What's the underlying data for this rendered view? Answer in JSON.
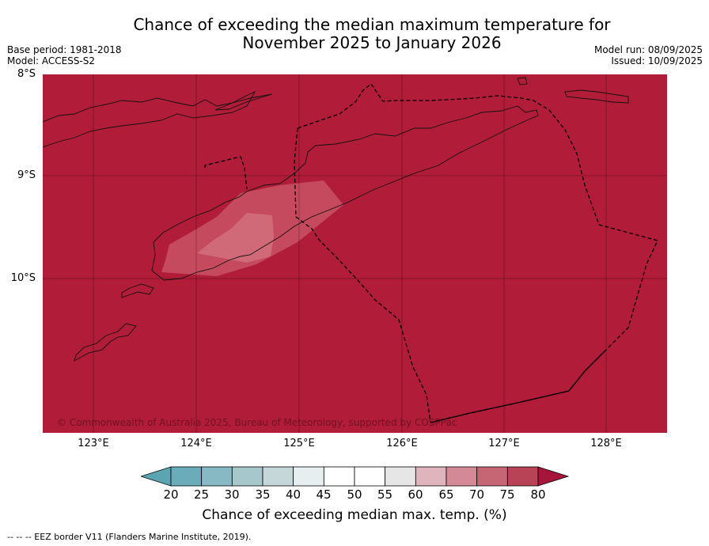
{
  "title": {
    "line1": "Chance of exceeding the median maximum temperature for",
    "line2": "November 2025 to January 2026"
  },
  "meta_left": {
    "base_period": "Base period: 1981-2018",
    "model": "Model: ACCESS-S2"
  },
  "meta_right": {
    "model_run": "Model run: 08/09/2025",
    "issued": "Issued: 10/09/2025"
  },
  "map": {
    "background_color": "#b11c38",
    "lat_labels": [
      "8°S",
      "9°S",
      "10°S"
    ],
    "lon_labels": [
      "123°E",
      "124°E",
      "125°E",
      "126°E",
      "127°E",
      "128°E"
    ],
    "extent": {
      "lon_min": 122.5,
      "lon_max": 128.6,
      "lat_min": -11.5,
      "lat_max": -8.0
    },
    "copyright": "© Commonwealth of Australia 2025, Bureau of Meteorology, supported by COSPPac"
  },
  "colorbar": {
    "ticks": [
      "20",
      "25",
      "30",
      "35",
      "40",
      "45",
      "50",
      "55",
      "60",
      "65",
      "70",
      "75",
      "80"
    ],
    "colors": [
      "#5ba4b1",
      "#6aacb9",
      "#86b9c3",
      "#a6c7cc",
      "#c6d7d9",
      "#e6eeef",
      "#ffffff",
      "#ffffff",
      "#e6e6e6",
      "#e0b4bd",
      "#d48a96",
      "#c66675",
      "#b94356",
      "#a8153a"
    ],
    "label": "Chance of exceeding median max. temp. (%)"
  },
  "footnote": "-- -- -- EEZ border V11 (Flanders Marine Institute, 2019)."
}
